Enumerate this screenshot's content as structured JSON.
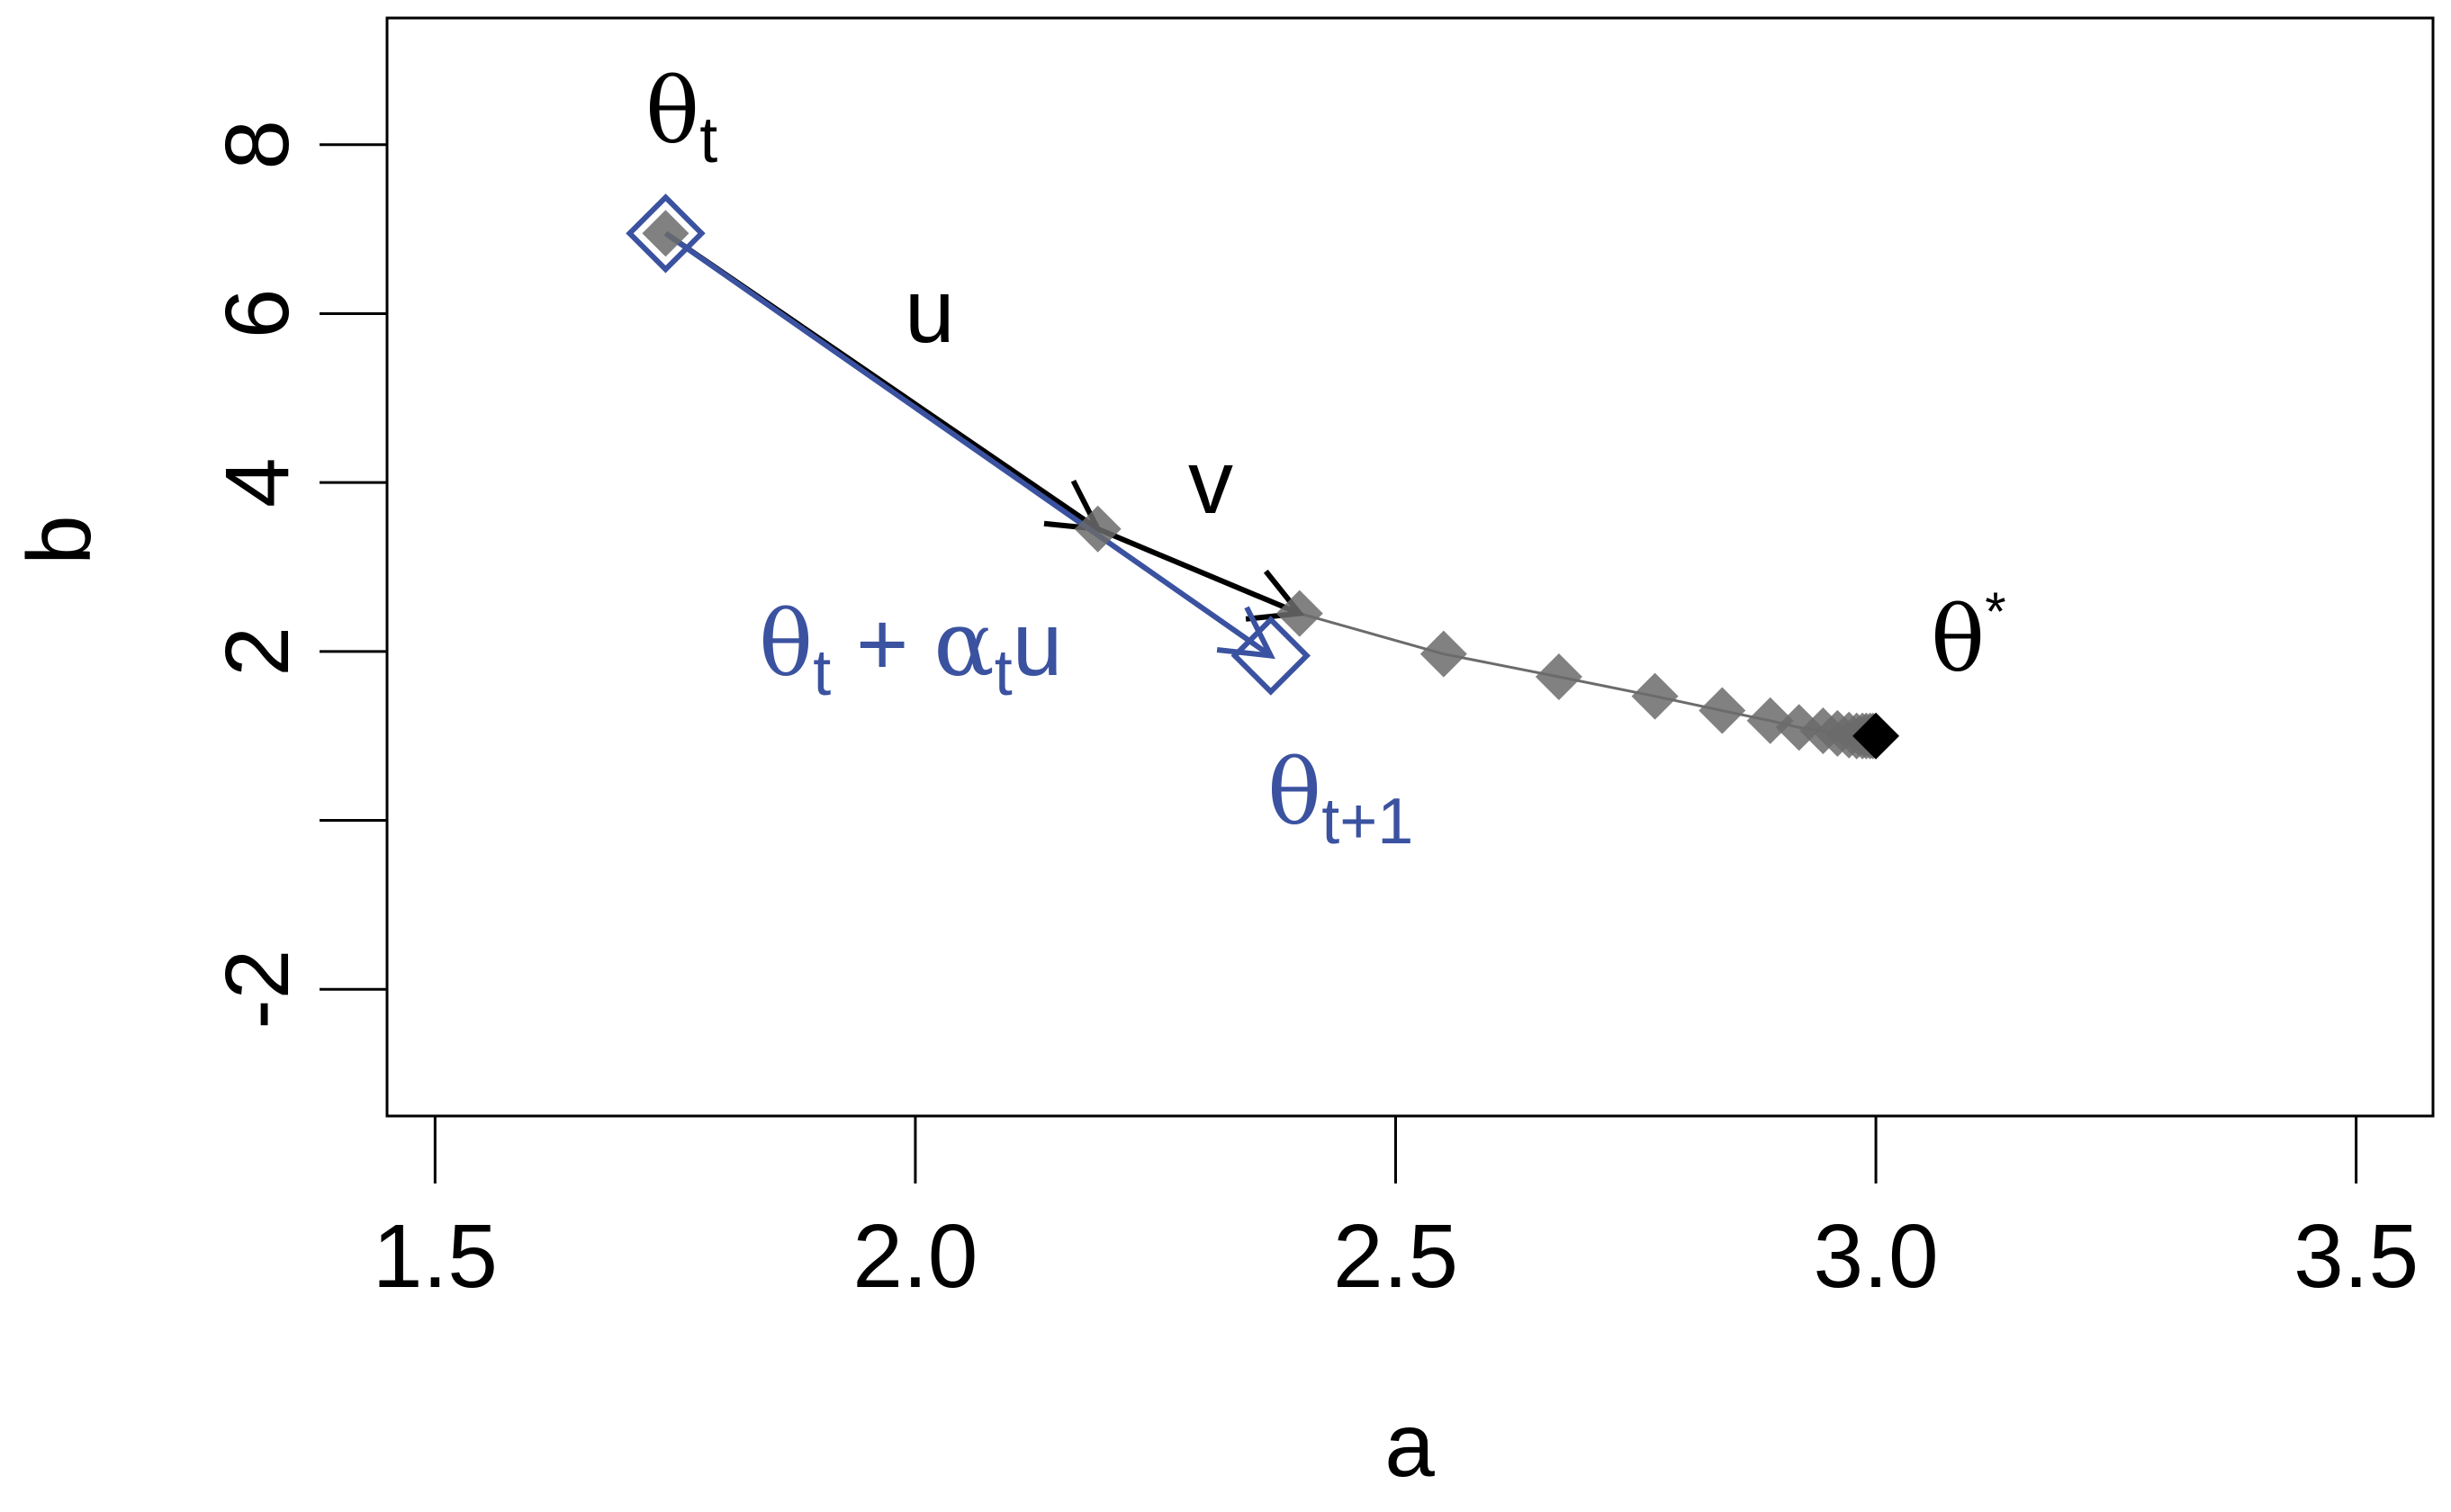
{
  "chart_data": {
    "type": "scatter",
    "title": "",
    "xlabel": "a",
    "ylabel": "b",
    "xlim": [
      1.45,
      3.58
    ],
    "ylim": [
      -3.5,
      9.5
    ],
    "x_ticks": [
      1.5,
      2.0,
      2.5,
      3.0,
      3.5
    ],
    "x_tick_labels": [
      "1.5",
      "2.0",
      "2.5",
      "3.0",
      "3.5"
    ],
    "y_ticks": [
      -2,
      0,
      2,
      4,
      6,
      8
    ],
    "y_tick_labels": [
      "-2",
      "",
      "2",
      "4",
      "6",
      "8"
    ],
    "grid": false,
    "colors": {
      "trajectory": "#6b6b6b",
      "highlight": "#3b52a0",
      "arrow": "#000000",
      "optimum": "#000000"
    },
    "series": [
      {
        "values": [
          {
            "x": 1.74,
            "y": 6.95
          },
          {
            "x": 2.19,
            "y": 3.45
          },
          {
            "x": 2.4,
            "y": 2.45
          },
          {
            "x": 2.55,
            "y": 1.97
          },
          {
            "x": 2.67,
            "y": 1.7
          },
          {
            "x": 2.77,
            "y": 1.47
          },
          {
            "x": 2.84,
            "y": 1.3
          },
          {
            "x": 2.89,
            "y": 1.18
          },
          {
            "x": 2.92,
            "y": 1.1
          },
          {
            "x": 2.945,
            "y": 1.06
          },
          {
            "x": 2.96,
            "y": 1.03
          },
          {
            "x": 2.972,
            "y": 1.01
          },
          {
            "x": 2.98,
            "y": 1.0
          },
          {
            "x": 2.986,
            "y": 1.0
          },
          {
            "x": 2.99,
            "y": 1.0
          },
          {
            "x": 2.994,
            "y": 1.0
          },
          {
            "x": 2.997,
            "y": 1.0
          }
        ]
      }
    ],
    "optimum": {
      "x": 3.0,
      "y": 1.0
    },
    "theta_t": {
      "x": 1.74,
      "y": 6.95
    },
    "theta_t_plus_u": {
      "x": 2.19,
      "y": 3.45
    },
    "theta_next": {
      "x": 2.37,
      "y": 1.95
    },
    "arrows": [
      {
        "label": "u",
        "from": {
          "x": 1.74,
          "y": 6.95
        },
        "to": {
          "x": 2.19,
          "y": 3.45
        },
        "color": "#000000"
      },
      {
        "label": "v",
        "from": {
          "x": 2.19,
          "y": 3.45
        },
        "to": {
          "x": 2.4,
          "y": 2.45
        },
        "color": "#000000"
      },
      {
        "label": "θt + αtu",
        "from": {
          "x": 1.74,
          "y": 6.95
        },
        "to": {
          "x": 2.37,
          "y": 1.95
        },
        "color": "#3b52a0"
      }
    ],
    "annotations": {
      "theta_t": {
        "base": "θ",
        "sub": "t"
      },
      "u": "u",
      "v": "v",
      "step": {
        "base": "θ",
        "sub1": "t",
        "op": " + ",
        "alpha": "α",
        "sub2": "t",
        "tail": "u"
      },
      "theta_next": {
        "base": "θ",
        "sub": "t+1"
      },
      "theta_star": {
        "base": "θ",
        "sup": "*"
      }
    }
  }
}
